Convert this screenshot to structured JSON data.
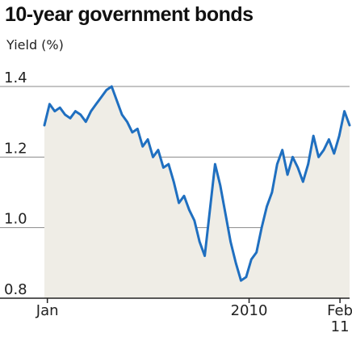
{
  "chart_data": {
    "type": "area",
    "title": "10-year government bonds",
    "ylabel": "Yield (%)",
    "xlabel": "",
    "ylim": [
      0.8,
      1.4
    ],
    "yticks": [
      {
        "value": 0.8,
        "label": "0.8"
      },
      {
        "value": 1.0,
        "label": "1.0"
      },
      {
        "value": 1.2,
        "label": "1.2"
      },
      {
        "value": 1.4,
        "label": "1.4"
      }
    ],
    "xlim": [
      "2009-12-28",
      "2011-02-14"
    ],
    "xticks": [
      {
        "date": "2010-01-01",
        "label": "Jan",
        "label2": ""
      },
      {
        "date": "2010-10-01",
        "label": "2010",
        "label2": ""
      },
      {
        "date": "2011-02-01",
        "label": "Feb",
        "label2": "11"
      }
    ],
    "grid": "horizontal",
    "line_color": "#1f6fc0",
    "fill_color": "#efede6",
    "series": [
      {
        "name": "",
        "x": [
          "2009-12-28",
          "2010-01-04",
          "2010-01-11",
          "2010-01-18",
          "2010-01-25",
          "2010-02-01",
          "2010-02-08",
          "2010-02-15",
          "2010-02-22",
          "2010-03-01",
          "2010-03-08",
          "2010-03-15",
          "2010-03-22",
          "2010-03-29",
          "2010-04-05",
          "2010-04-12",
          "2010-04-19",
          "2010-04-26",
          "2010-05-03",
          "2010-05-10",
          "2010-05-17",
          "2010-05-24",
          "2010-05-31",
          "2010-06-07",
          "2010-06-14",
          "2010-06-21",
          "2010-06-28",
          "2010-07-05",
          "2010-07-12",
          "2010-07-19",
          "2010-07-26",
          "2010-08-02",
          "2010-08-09",
          "2010-08-16",
          "2010-08-23",
          "2010-08-30",
          "2010-09-06",
          "2010-09-13",
          "2010-09-20",
          "2010-09-27",
          "2010-10-04",
          "2010-10-11",
          "2010-10-18",
          "2010-10-25",
          "2010-11-01",
          "2010-11-08",
          "2010-11-15",
          "2010-11-22",
          "2010-11-29",
          "2010-12-06",
          "2010-12-13",
          "2010-12-20",
          "2010-12-27",
          "2011-01-03",
          "2011-01-10",
          "2011-01-17",
          "2011-01-24",
          "2011-01-31",
          "2011-02-07",
          "2011-02-14"
        ],
        "y": [
          1.29,
          1.35,
          1.33,
          1.34,
          1.32,
          1.31,
          1.33,
          1.32,
          1.3,
          1.33,
          1.35,
          1.37,
          1.39,
          1.4,
          1.36,
          1.32,
          1.3,
          1.27,
          1.28,
          1.23,
          1.25,
          1.2,
          1.22,
          1.17,
          1.18,
          1.13,
          1.07,
          1.09,
          1.05,
          1.02,
          0.96,
          0.92,
          1.05,
          1.18,
          1.12,
          1.04,
          0.96,
          0.9,
          0.85,
          0.86,
          0.91,
          0.93,
          1.0,
          1.06,
          1.1,
          1.18,
          1.22,
          1.15,
          1.2,
          1.17,
          1.13,
          1.18,
          1.26,
          1.2,
          1.22,
          1.25,
          1.21,
          1.26,
          1.33,
          1.29
        ]
      }
    ]
  }
}
